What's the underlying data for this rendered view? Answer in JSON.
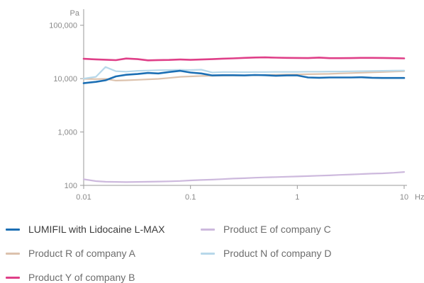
{
  "chart_data": {
    "type": "line",
    "y_scale": "log",
    "x_scale": "log",
    "y_unit": "Pa",
    "x_unit": "Hz",
    "ylim": [
      100,
      200000
    ],
    "xlim": [
      0.01,
      10
    ],
    "grid": false,
    "legend_position": "bottom",
    "y_ticks": [
      {
        "value": 100,
        "label": "100"
      },
      {
        "value": 1000,
        "label": "1,000"
      },
      {
        "value": 10000,
        "label": "10,000"
      },
      {
        "value": 100000,
        "label": "100,000"
      }
    ],
    "x_ticks": [
      {
        "value": 0.01,
        "label": "0.01"
      },
      {
        "value": 0.1,
        "label": "0.1"
      },
      {
        "value": 1,
        "label": "1"
      },
      {
        "value": 10,
        "label": "10"
      }
    ],
    "x": [
      0.01,
      0.013,
      0.016,
      0.02,
      0.025,
      0.032,
      0.04,
      0.05,
      0.063,
      0.08,
      0.1,
      0.126,
      0.16,
      0.2,
      0.25,
      0.32,
      0.4,
      0.5,
      0.63,
      0.8,
      1,
      1.26,
      1.6,
      2,
      2.5,
      3.2,
      4,
      5,
      6.3,
      8,
      10
    ],
    "series": [
      {
        "name": "LUMIFIL with Lidocaine L-MAX",
        "color": "#1c6fb4",
        "width": 2.6,
        "values": [
          8200,
          8700,
          9300,
          11000,
          11800,
          12200,
          12800,
          12500,
          13300,
          14000,
          13000,
          12500,
          11500,
          11600,
          11600,
          11500,
          11700,
          11600,
          11300,
          11500,
          11500,
          10500,
          10400,
          10500,
          10500,
          10500,
          10600,
          10400,
          10300,
          10300,
          10300
        ]
      },
      {
        "name": "Product E of company C",
        "color": "#cdb9dd",
        "width": 2.2,
        "values": [
          130,
          120,
          117,
          116,
          115,
          116,
          117,
          118,
          119,
          121,
          124,
          126,
          128,
          131,
          134,
          136,
          139,
          141,
          143,
          145,
          147,
          149,
          152,
          154,
          157,
          160,
          163,
          166,
          168,
          172,
          178
        ]
      },
      {
        "name": "Product R of company A",
        "color": "#dcc2ad",
        "width": 2.2,
        "values": [
          9900,
          9800,
          9900,
          9200,
          9300,
          9500,
          9700,
          9900,
          10300,
          10800,
          11000,
          11200,
          11300,
          11400,
          11500,
          11500,
          11600,
          11700,
          11800,
          11900,
          12000,
          12100,
          12200,
          12300,
          12500,
          12700,
          12900,
          13100,
          13300,
          13600,
          13800
        ]
      },
      {
        "name": "Product N of company D",
        "color": "#b7d8ea",
        "width": 2.2,
        "values": [
          10000,
          10800,
          16500,
          13800,
          13500,
          14000,
          14200,
          14400,
          14500,
          14600,
          14500,
          14700,
          13000,
          13300,
          13300,
          13200,
          13300,
          13300,
          13400,
          13400,
          13400,
          13500,
          13500,
          13600,
          13600,
          13700,
          13800,
          13900,
          14000,
          14100,
          14200
        ]
      },
      {
        "name": "Product Y of company B",
        "color": "#df3f88",
        "width": 2.6,
        "values": [
          23500,
          23000,
          22600,
          22200,
          23800,
          23200,
          22000,
          22300,
          22400,
          22800,
          22500,
          22800,
          23200,
          23700,
          24000,
          24500,
          24900,
          25000,
          24700,
          24500,
          24400,
          24300,
          24800,
          24200,
          24200,
          24300,
          24500,
          24500,
          24400,
          24200,
          24000
        ]
      }
    ]
  },
  "legend": {
    "items": [
      {
        "label": "LUMIFIL with Lidocaine L-MAX",
        "color": "#1c6fb4",
        "strong": true
      },
      {
        "label": "Product E of company C",
        "color": "#cdb9dd"
      },
      {
        "label": "Product R of company A",
        "color": "#dcc2ad"
      },
      {
        "label": "Product N of company D",
        "color": "#b7d8ea"
      },
      {
        "label": "Product Y of company B",
        "color": "#df3f88"
      }
    ]
  }
}
